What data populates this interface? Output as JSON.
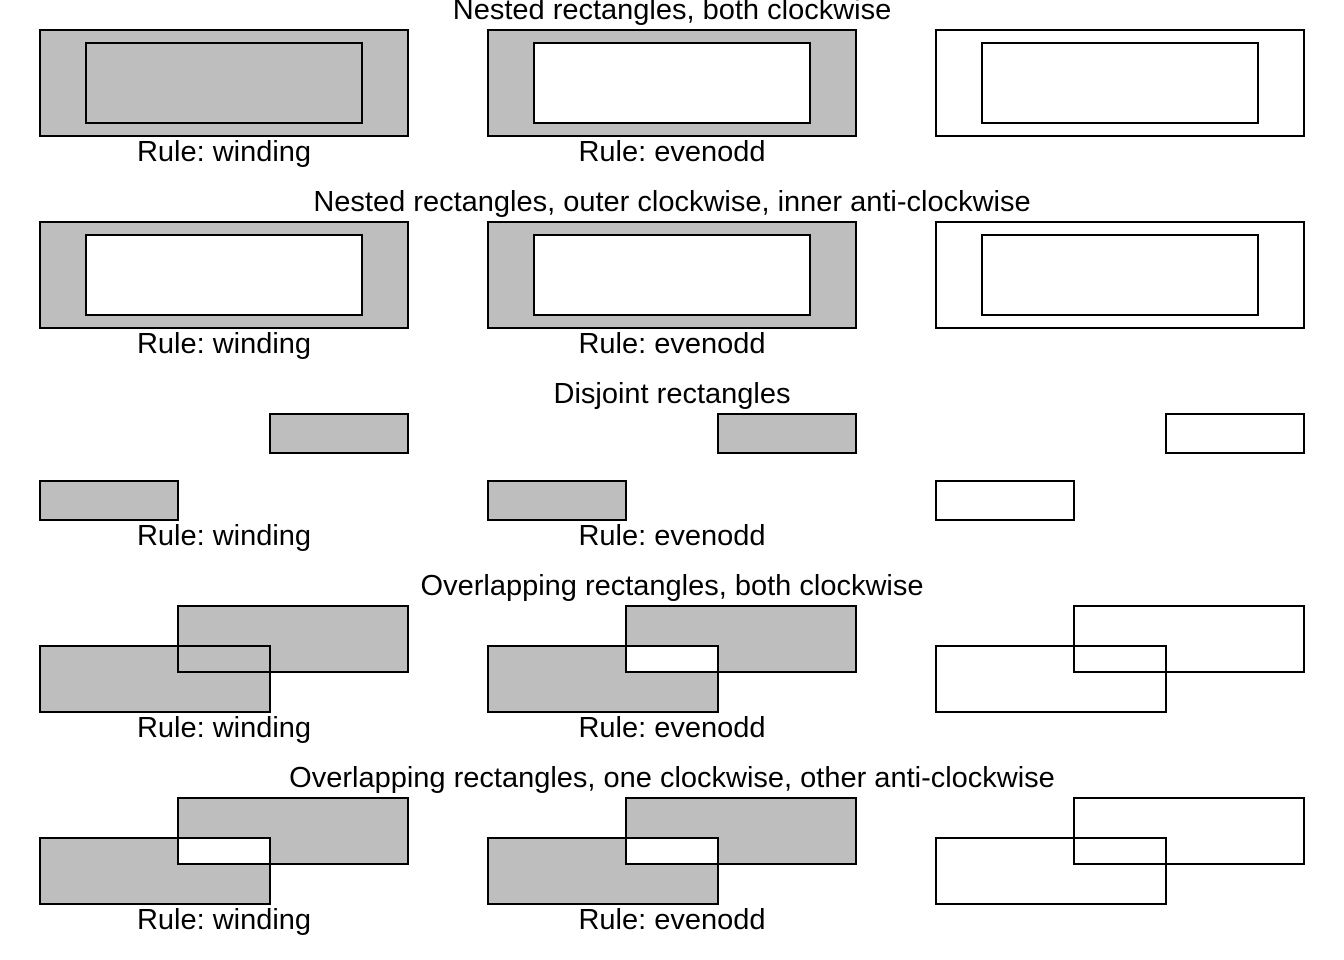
{
  "colors": {
    "fill": "#bebebe",
    "stroke": "#000000",
    "background": "#ffffff"
  },
  "rule_labels": {
    "winding": "Rule: winding",
    "evenodd": "Rule: evenodd"
  },
  "rows": [
    {
      "title": "Nested rectangles, both clockwise",
      "kind": "nested-both-cw"
    },
    {
      "title": "Nested rectangles, outer clockwise, inner anti-clockwise",
      "kind": "nested-cw-acw"
    },
    {
      "title": "Disjoint rectangles",
      "kind": "disjoint"
    },
    {
      "title": "Overlapping rectangles, both clockwise",
      "kind": "overlap-both-cw"
    },
    {
      "title": "Overlapping rectangles, one clockwise, other anti-clockwise",
      "kind": "overlap-cw-acw"
    }
  ]
}
